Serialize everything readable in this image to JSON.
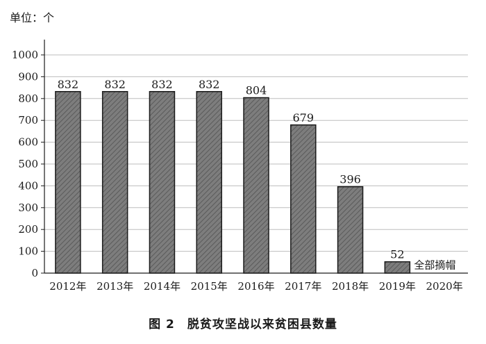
{
  "unit_label": "单位：个",
  "caption": "图 2　脱贫攻坚战以来贫困县数量",
  "colors": {
    "bar_fill": "#7d7d7d",
    "bar_hatch": "#5a5a5a",
    "bar_stroke": "#1a1a1a",
    "axis": "#1a1a1a",
    "grid": "#bdbdbd"
  },
  "chart_data": {
    "type": "bar",
    "title": "",
    "xlabel": "",
    "ylabel": "",
    "ylim": [
      0,
      1000
    ],
    "yticks": [
      0,
      100,
      200,
      300,
      400,
      500,
      600,
      700,
      800,
      900,
      1000
    ],
    "grid": true,
    "categories": [
      "2012年",
      "2013年",
      "2014年",
      "2015年",
      "2016年",
      "2017年",
      "2018年",
      "2019年",
      "2020年"
    ],
    "values": [
      832,
      832,
      832,
      832,
      804,
      679,
      396,
      52,
      0
    ],
    "data_labels": [
      "832",
      "832",
      "832",
      "832",
      "804",
      "679",
      "396",
      "52",
      ""
    ],
    "annotation": {
      "category": "2019年",
      "text": "全部摘帽"
    }
  }
}
